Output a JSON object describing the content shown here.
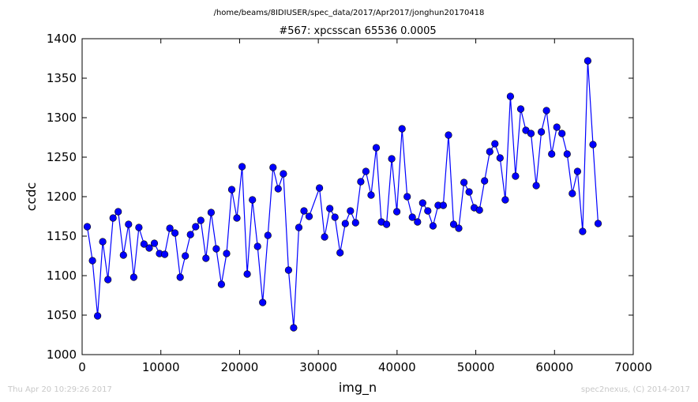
{
  "header": {
    "path": "/home/beams/8IDIUSER/spec_data/2017/Apr2017/jonghun20170418"
  },
  "footer": {
    "timestamp": "Thu Apr 20 10:29:26 2017",
    "credit": "spec2nexus, (C) 2014-2017"
  },
  "chart_data": {
    "type": "line",
    "title": "#567: xpcsscan 65536 0.0005",
    "xlabel": "img_n",
    "ylabel": "ccdc",
    "xlim": [
      0,
      70000
    ],
    "ylim": [
      1000,
      1400
    ],
    "xticks": [
      0,
      10000,
      20000,
      30000,
      40000,
      50000,
      60000,
      70000
    ],
    "yticks": [
      1000,
      1050,
      1100,
      1150,
      1200,
      1250,
      1300,
      1350,
      1400
    ],
    "grid": false,
    "legend": "none",
    "series": [
      {
        "color": "#0000ff",
        "marker": "circle",
        "x": [
          655,
          1311,
          1966,
          2621,
          3277,
          3932,
          4588,
          5243,
          5898,
          6554,
          7209,
          7864,
          8520,
          9175,
          9830,
          10486,
          11141,
          11796,
          12452,
          13107,
          13763,
          14418,
          15073,
          15729,
          16384,
          17039,
          17695,
          18350,
          19005,
          19661,
          20316,
          20972,
          21627,
          22282,
          22938,
          23593,
          24248,
          24904,
          25559,
          26214,
          26870,
          27525,
          28180,
          28836,
          30147,
          30802,
          31457,
          32113,
          32768,
          33423,
          34079,
          34734,
          35389,
          36045,
          36700,
          37356,
          38011,
          38666,
          39322,
          39977,
          40632,
          41288,
          41943,
          42598,
          43254,
          43909,
          44565,
          45220,
          45875,
          46531,
          47186,
          47841,
          48497,
          49152,
          49807,
          50463,
          51118,
          51773,
          52429,
          53084,
          53740,
          54395,
          55050,
          55706,
          56361,
          57016,
          57672,
          58327,
          58982,
          59638,
          60293,
          60949,
          61604,
          62259,
          62915,
          63570,
          64225,
          64881,
          65536
        ],
        "y": [
          1162,
          1119,
          1049,
          1143,
          1095,
          1173,
          1181,
          1126,
          1165,
          1098,
          1161,
          1140,
          1135,
          1141,
          1128,
          1127,
          1160,
          1154,
          1098,
          1125,
          1152,
          1162,
          1170,
          1122,
          1180,
          1134,
          1089,
          1128,
          1209,
          1173,
          1238,
          1102,
          1196,
          1137,
          1066,
          1151,
          1237,
          1210,
          1229,
          1107,
          1034,
          1161,
          1182,
          1175,
          1211,
          1149,
          1185,
          1174,
          1129,
          1166,
          1182,
          1167,
          1219,
          1232,
          1202,
          1262,
          1168,
          1165,
          1248,
          1181,
          1286,
          1200,
          1174,
          1168,
          1192,
          1182,
          1163,
          1189,
          1189,
          1278,
          1165,
          1160,
          1218,
          1206,
          1186,
          1183,
          1220,
          1257,
          1267,
          1249,
          1196,
          1327,
          1226,
          1311,
          1284,
          1280,
          1214,
          1282,
          1309,
          1254,
          1288,
          1280,
          1254,
          1204,
          1232,
          1156,
          1372,
          1266,
          1166
        ]
      }
    ]
  }
}
